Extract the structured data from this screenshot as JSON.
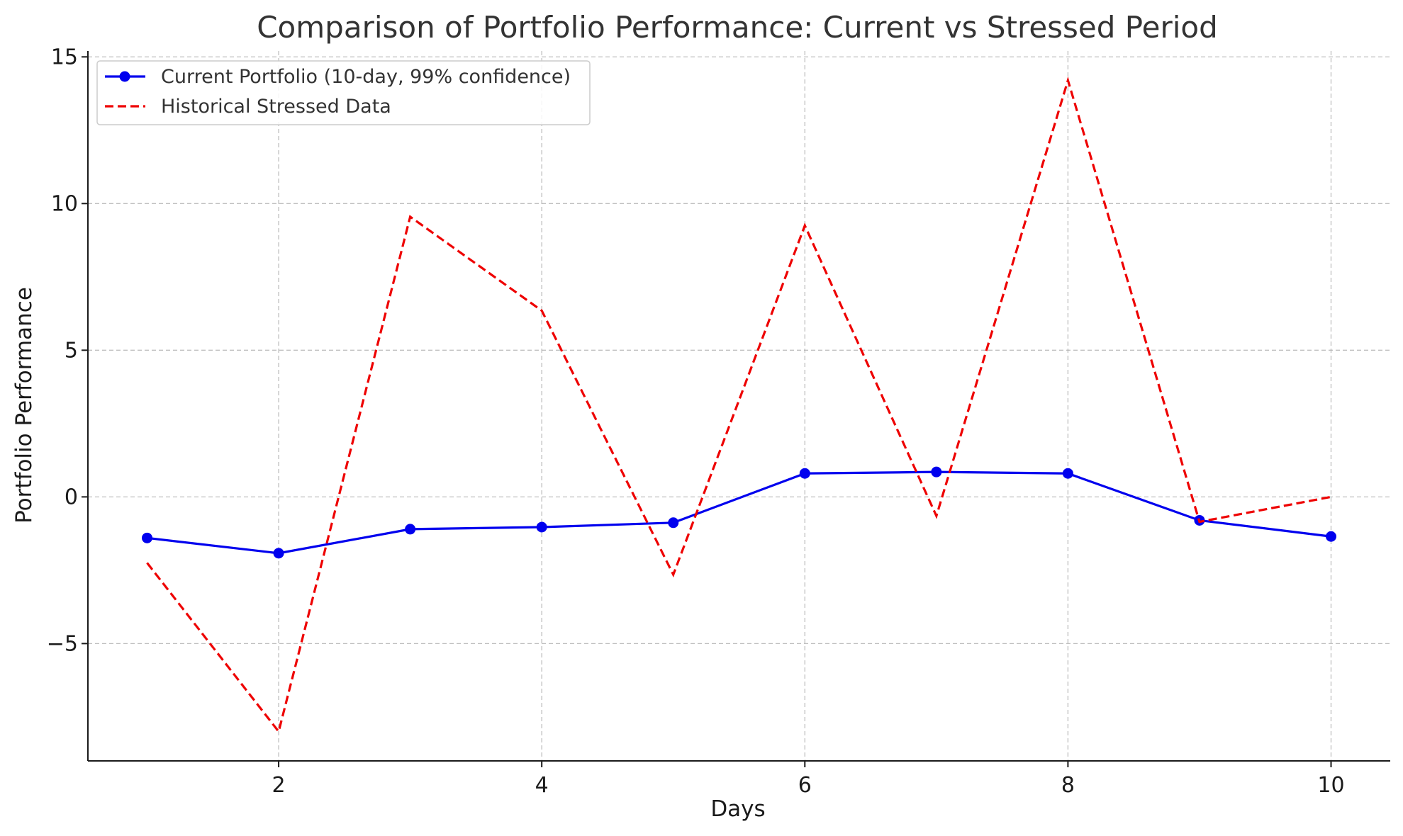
{
  "chart_data": {
    "type": "line",
    "title": "Comparison of Portfolio Performance: Current vs Stressed Period",
    "xlabel": "Days",
    "ylabel": "Portfolio Performance",
    "xlim": [
      0.55,
      10.45
    ],
    "ylim": [
      -9.0,
      15.2
    ],
    "xticks": [
      2,
      4,
      6,
      8,
      10
    ],
    "xtick_labels": [
      "2",
      "4",
      "6",
      "8",
      "10"
    ],
    "yticks": [
      -5,
      0,
      5,
      10,
      15
    ],
    "ytick_labels": [
      "−5",
      "0",
      "5",
      "10",
      "15"
    ],
    "grid": true,
    "legend_position": "top-left",
    "x": [
      1,
      2,
      3,
      4,
      5,
      6,
      7,
      8,
      9,
      10
    ],
    "series": [
      {
        "name": "Current Portfolio (10-day, 99% confidence)",
        "values": [
          -1.4,
          -1.92,
          -1.1,
          -1.03,
          -0.88,
          0.8,
          0.85,
          0.8,
          -0.8,
          -1.35
        ],
        "color": "#0000ee",
        "style": "solid",
        "marker": "circle"
      },
      {
        "name": "Historical Stressed Data",
        "values": [
          -2.25,
          -8.0,
          9.55,
          6.35,
          -2.65,
          9.25,
          -0.65,
          14.2,
          -0.85,
          0.0
        ],
        "color": "#ee0000",
        "style": "dashed",
        "marker": "none"
      }
    ]
  }
}
